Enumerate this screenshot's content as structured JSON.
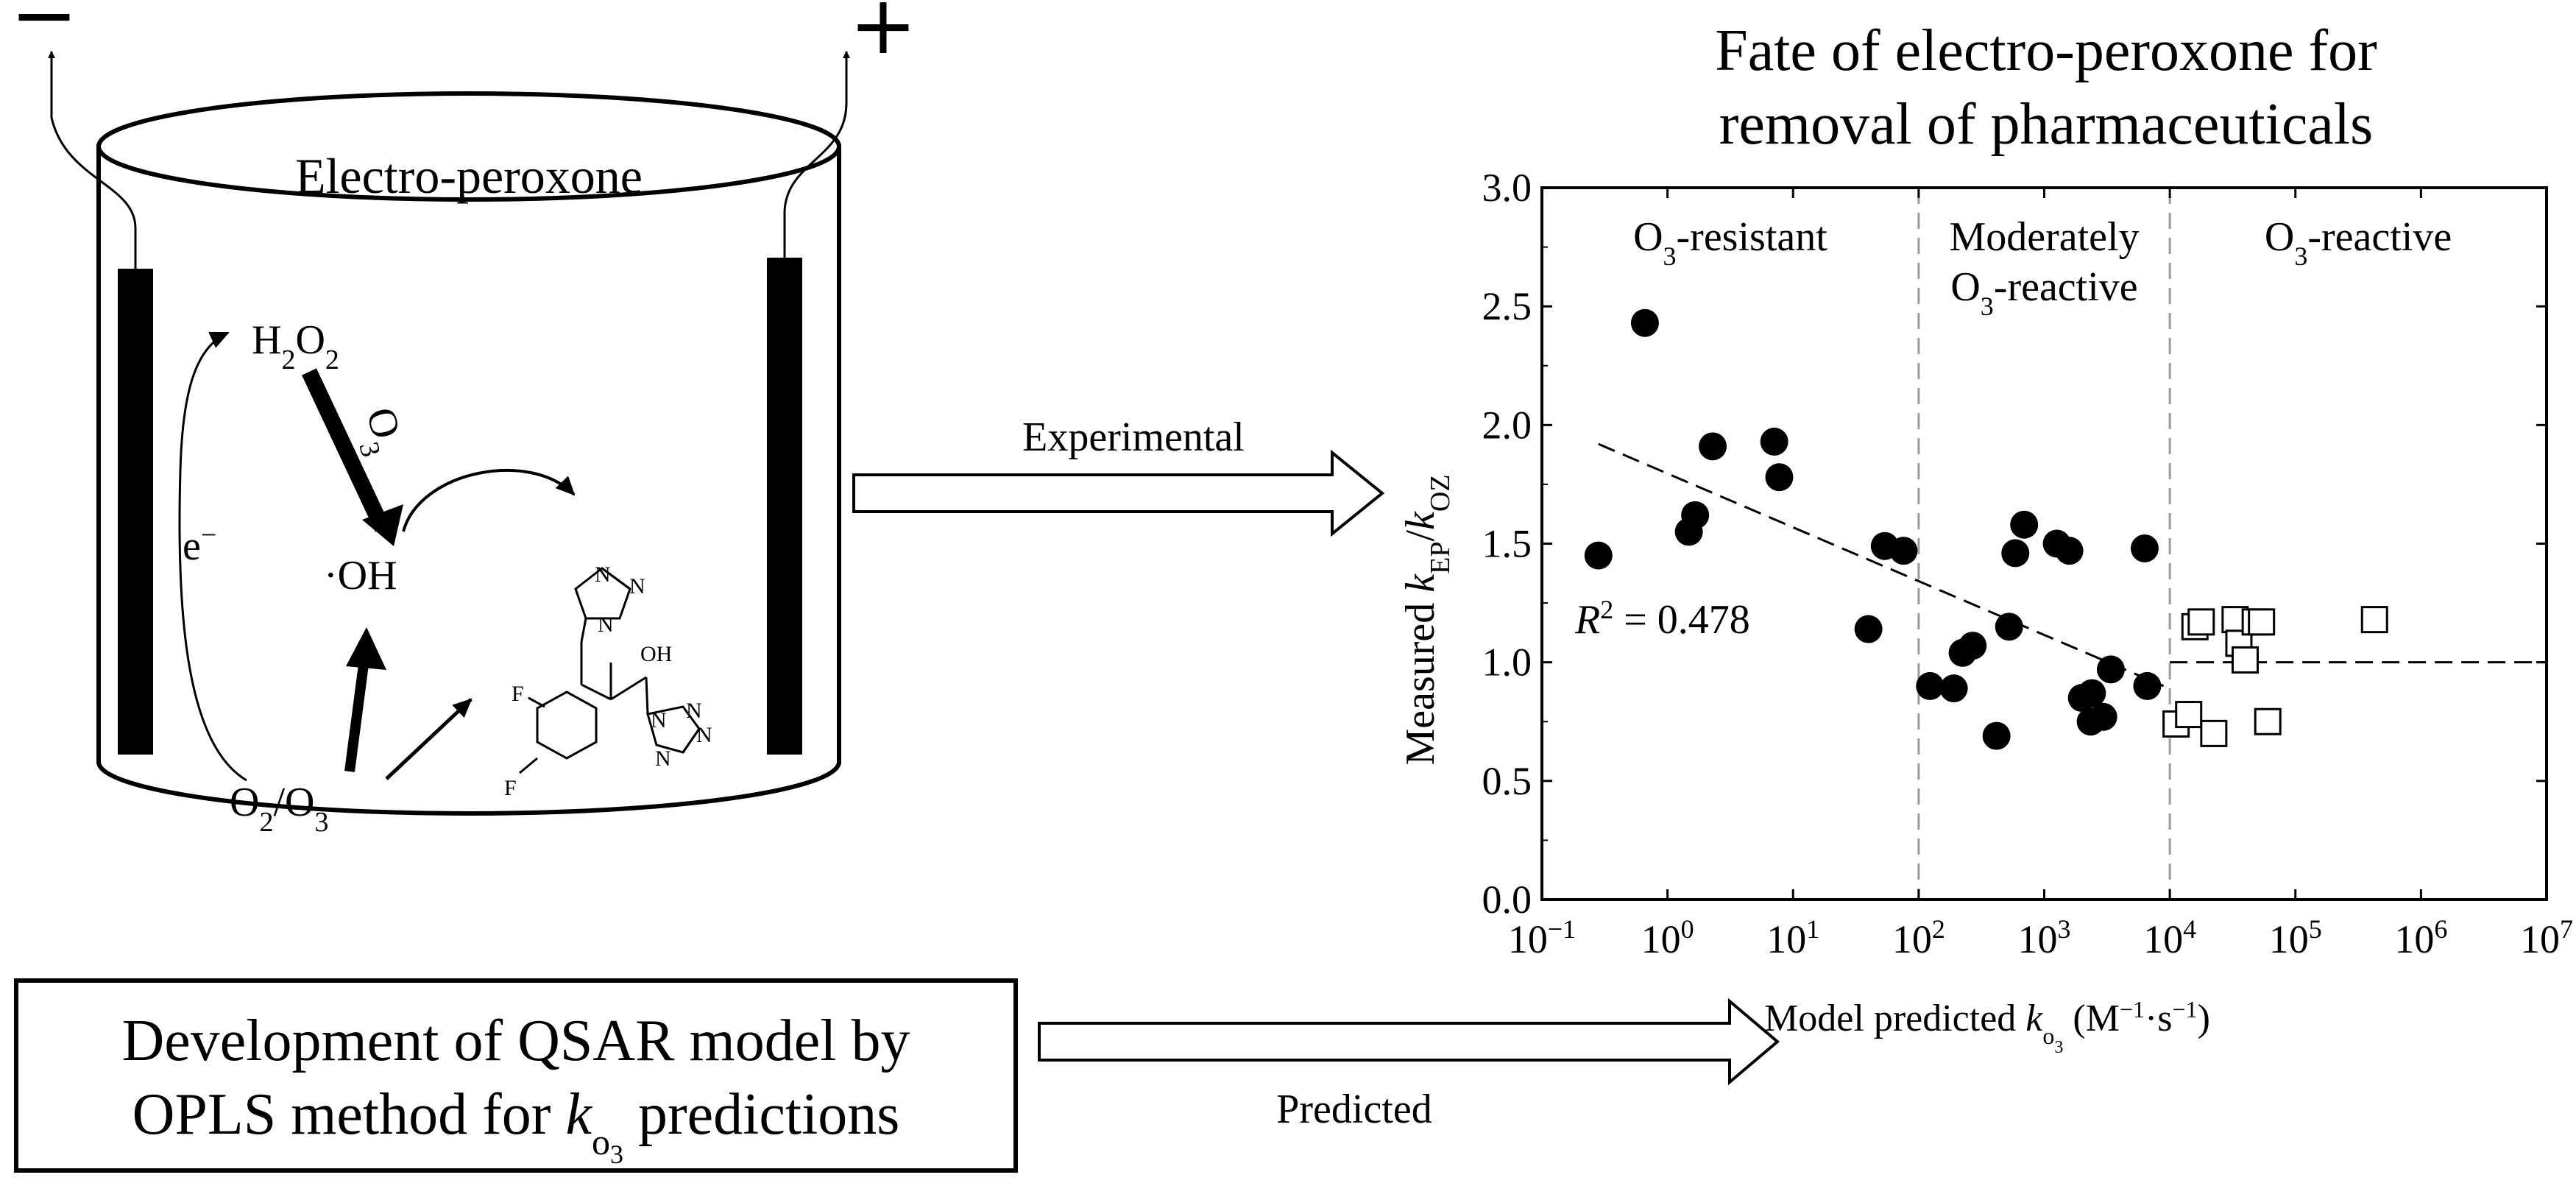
{
  "electrodes": {
    "negative": "−",
    "positive": "+"
  },
  "cell": {
    "title": "Electro-peroxone",
    "h2o2": [
      "H",
      "2",
      "O",
      "2"
    ],
    "o2o3": [
      "O",
      "2",
      "/O",
      "3"
    ],
    "oh": "·OH",
    "electron": [
      "e",
      "−"
    ],
    "o3_arrow": [
      "O",
      "3"
    ],
    "molecule_atoms": {
      "nitrogen": "N",
      "fluorine": "F",
      "hydroxyl": "OH"
    }
  },
  "arrows": {
    "experimental": "Experimental",
    "predicted": "Predicted"
  },
  "qsar_box": {
    "line1": "Development of QSAR model by",
    "line2_prefix": "OPLS method for ",
    "line2_k": "k",
    "line2_sub_o": "o",
    "line2_sub_3": "3",
    "line2_suffix": " predictions"
  },
  "chart_data": {
    "type": "scatter",
    "title": [
      "Fate of electro-peroxone for",
      "removal of pharmaceuticals"
    ],
    "ylabel": {
      "prefix": "Measured ",
      "k1": "k",
      "sub1": "EP",
      "slash": "/",
      "k2": "k",
      "sub2": "OZ"
    },
    "xlabel": {
      "prefix": "Model predicted ",
      "k": "k",
      "sub_o": "o",
      "sub_3": "3",
      "units_a": " (M",
      "exp1": "−1",
      "units_b": "·s",
      "exp2": "−1",
      "units_c": ")"
    },
    "x_scale": "log10",
    "xlim_log10": [
      -1,
      7
    ],
    "ylim": [
      0,
      3
    ],
    "x_ticks": [
      {
        "base": "10",
        "exp": "−1"
      },
      {
        "base": "10",
        "exp": "0"
      },
      {
        "base": "10",
        "exp": "1"
      },
      {
        "base": "10",
        "exp": "2"
      },
      {
        "base": "10",
        "exp": "3"
      },
      {
        "base": "10",
        "exp": "4"
      },
      {
        "base": "10",
        "exp": "5"
      },
      {
        "base": "10",
        "exp": "6"
      },
      {
        "base": "10",
        "exp": "7"
      }
    ],
    "y_ticks": [
      "0.0",
      "0.5",
      "1.0",
      "1.5",
      "2.0",
      "2.5",
      "3.0"
    ],
    "y_tick_values": [
      0,
      0.5,
      1.0,
      1.5,
      2.0,
      2.5,
      3.0
    ],
    "regions": [
      {
        "lines": [
          [
            "O",
            "3",
            "-resistant"
          ]
        ]
      },
      {
        "lines": [
          [
            "Moderately",
            "",
            ""
          ],
          [
            "O",
            "3",
            "-reactive"
          ]
        ]
      },
      {
        "lines": [
          [
            "O",
            "3",
            "-reactive"
          ]
        ]
      }
    ],
    "region_boundaries_log10": [
      2,
      4
    ],
    "annotation": {
      "r": "R",
      "sup": "2",
      "text": " = 0.478"
    },
    "trend_line": {
      "log10_x": [
        -0.55,
        3.95
      ],
      "y": [
        1.92,
        0.9
      ]
    },
    "reference_line": {
      "log10_x": [
        4,
        7
      ],
      "y": [
        1.0,
        1.0
      ]
    },
    "series": [
      {
        "name": "filled circles",
        "marker": "filled-circle",
        "log10_x": [
          -0.55,
          -0.18,
          0.17,
          0.22,
          0.36,
          0.85,
          0.89,
          1.6,
          1.73,
          1.88,
          2.09,
          2.28,
          2.35,
          2.43,
          2.62,
          2.72,
          2.77,
          2.84,
          3.1,
          3.2,
          3.3,
          3.37,
          3.38,
          3.47,
          3.53,
          3.8,
          3.82
        ],
        "y": [
          1.45,
          2.43,
          1.55,
          1.62,
          1.91,
          1.93,
          1.78,
          1.14,
          1.49,
          1.47,
          0.9,
          0.89,
          1.04,
          1.07,
          0.69,
          1.15,
          1.46,
          1.58,
          1.5,
          1.47,
          0.85,
          0.75,
          0.87,
          0.77,
          0.97,
          1.48,
          0.9
        ]
      },
      {
        "name": "open squares",
        "marker": "open-square",
        "log10_x": [
          4.05,
          4.15,
          4.2,
          4.25,
          4.35,
          4.52,
          4.55,
          4.6,
          4.68,
          4.73,
          4.78,
          5.63
        ],
        "y": [
          0.74,
          0.78,
          1.15,
          1.17,
          0.7,
          1.18,
          1.08,
          1.01,
          1.17,
          1.17,
          0.75,
          1.18
        ]
      }
    ]
  }
}
